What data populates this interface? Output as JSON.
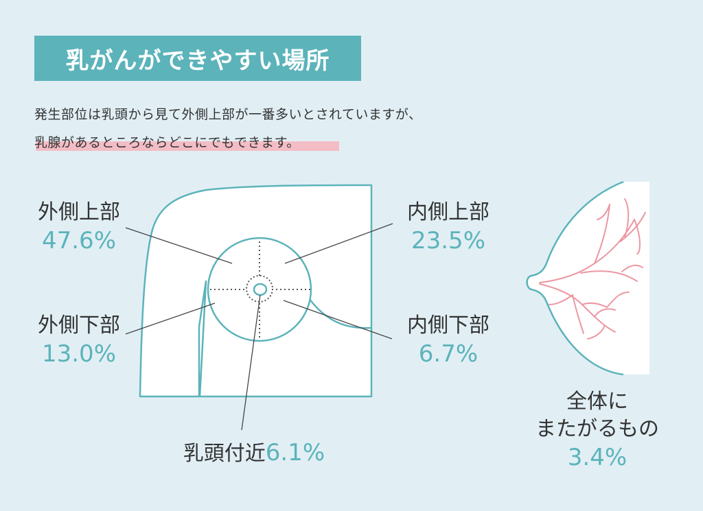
{
  "title": "乳がんができやすい場所",
  "description": [
    "発生部位は乳頭から見て外側上部が一番多いとされていますが、",
    "乳腺があるところならどこにでもできます。"
  ],
  "regions": {
    "outer_upper": {
      "label": "外側上部",
      "percent": "47.6%",
      "value": 47.6
    },
    "inner_upper": {
      "label": "内側上部",
      "percent": "23.5%",
      "value": 23.5
    },
    "outer_lower": {
      "label": "外側下部",
      "percent": "13.0%",
      "value": 13.0
    },
    "inner_lower": {
      "label": "内側下部",
      "percent": "6.7%",
      "value": 6.7
    },
    "nipple_area": {
      "label": "乳頭付近",
      "percent": "6.1%",
      "value": 6.1
    },
    "whole": {
      "label_line1": "全体に",
      "label_line2": "またがるもの",
      "percent": "3.4%",
      "value": 3.4
    }
  },
  "colors": {
    "background": "#e1eff5",
    "accent": "#5cb3ba",
    "highlight": "#f6b4bd",
    "gland": "#ec97a2",
    "text": "#333333"
  }
}
